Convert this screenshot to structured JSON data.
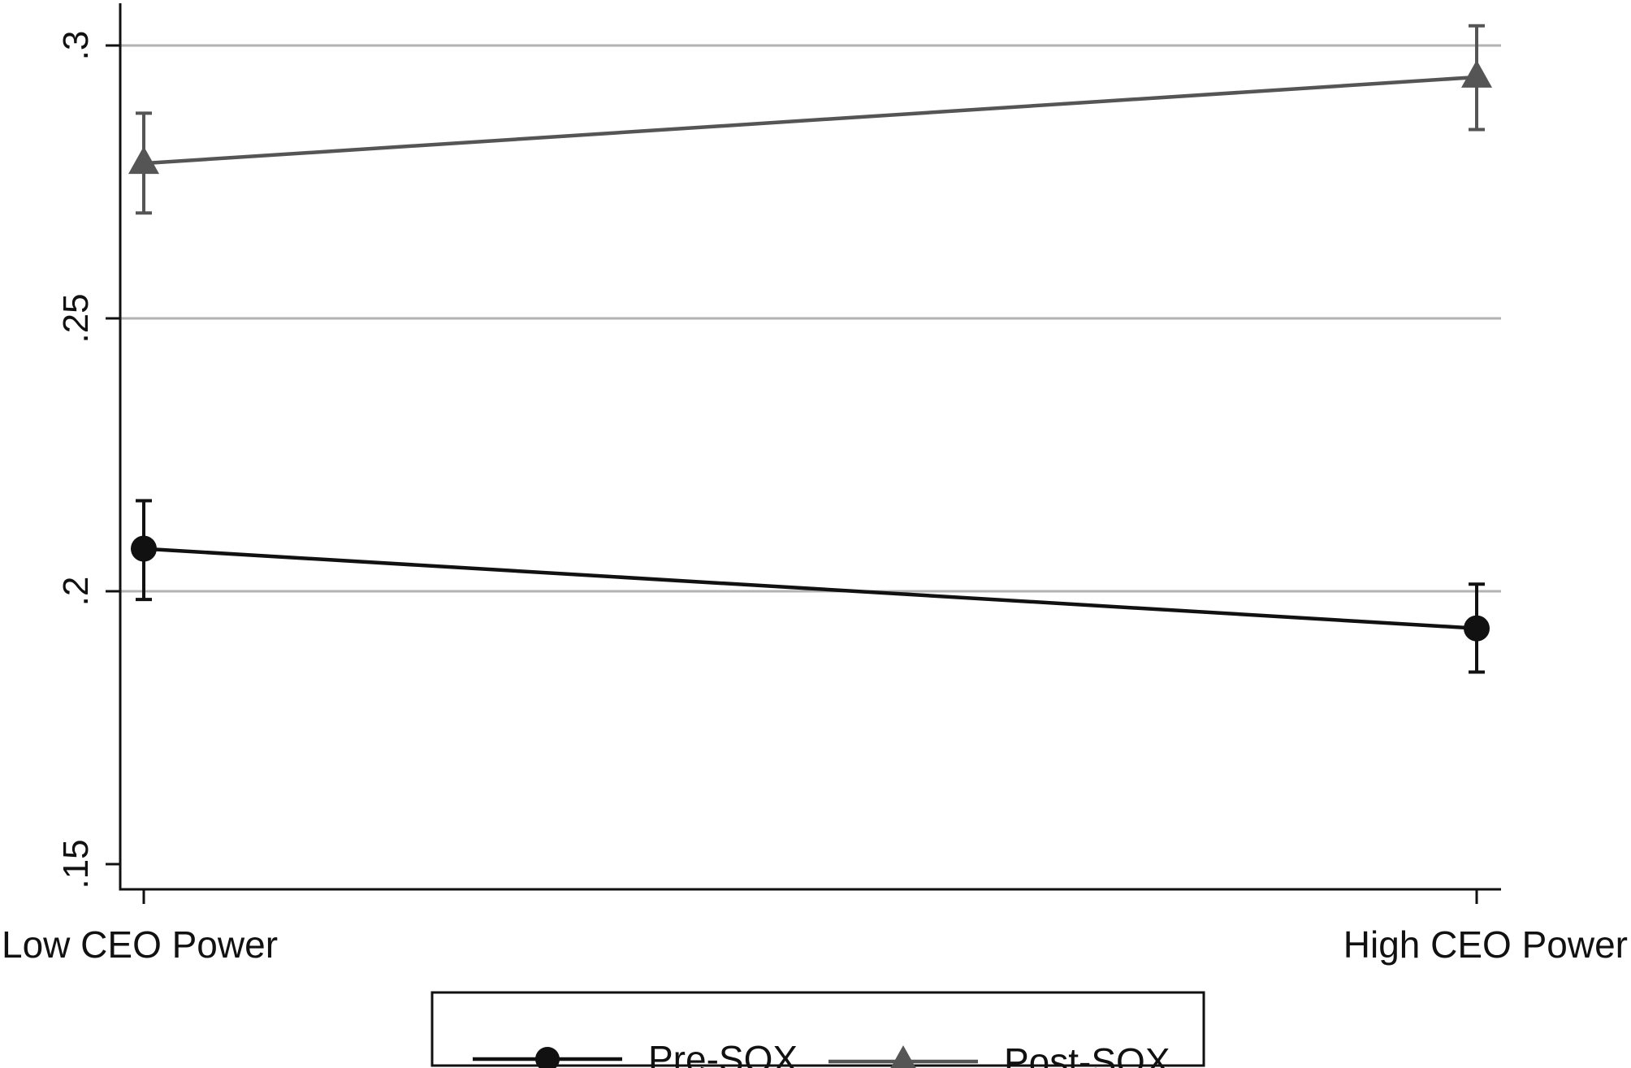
{
  "chart_data": {
    "type": "line",
    "categories": [
      "Low CEO Power",
      "High CEO Power"
    ],
    "ylim": [
      0.15,
      0.3
    ],
    "yticks": [
      {
        "value": 0.15,
        "label": ".15"
      },
      {
        "value": 0.2,
        "label": ".2"
      },
      {
        "value": 0.25,
        "label": ".25"
      },
      {
        "value": 0.3,
        "label": ".3"
      }
    ],
    "grid": true,
    "legend_position": "bottom",
    "series": [
      {
        "name": "Pre-SOX",
        "marker": "circle",
        "color": "#111111",
        "values": [
          0.2078,
          0.1932
        ],
        "ci_low": [
          0.1985,
          0.1852
        ],
        "ci_high": [
          0.2166,
          0.2013
        ]
      },
      {
        "name": "Post-SOX",
        "marker": "triangle",
        "color": "#555555",
        "values": [
          0.2784,
          0.2942
        ],
        "ci_low": [
          0.2693,
          0.2846
        ],
        "ci_high": [
          0.2876,
          0.3036
        ]
      }
    ]
  },
  "colors": {
    "axis": "#111111",
    "gridline": "#b3b3b3",
    "background": "#ffffff"
  }
}
